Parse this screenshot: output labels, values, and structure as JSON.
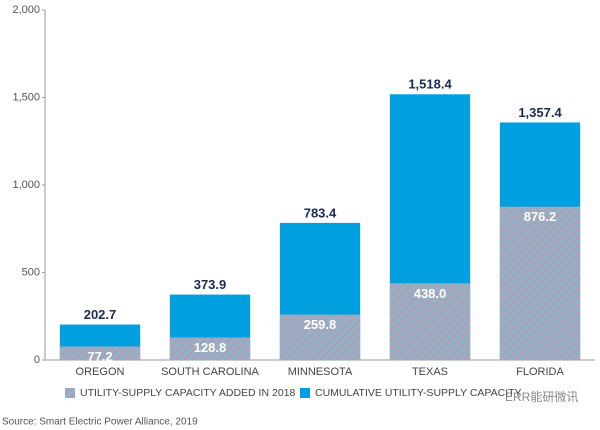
{
  "chart_data": {
    "type": "bar",
    "source": "Source: Smart Electric Power Alliance, 2019",
    "watermark": "ERR能研微讯",
    "categories": [
      "OREGON",
      "SOUTH CAROLINA",
      "MINNESOTA",
      "TEXAS",
      "FLORIDA"
    ],
    "series": [
      {
        "name": "UTILITY-SUPPLY CAPACITY ADDED IN 2018",
        "color": "#c9939e",
        "values": [
          77.2,
          128.8,
          259.8,
          438.0,
          876.2
        ],
        "value_labels": [
          "77.2",
          "128.8",
          "259.8",
          "438.0",
          "876.2"
        ]
      },
      {
        "name": "CUMULATIVE UTILITY-SUPPLY CAPACITY",
        "color": "#009fdf",
        "values": [
          202.7,
          373.9,
          783.4,
          1518.4,
          1357.4
        ],
        "value_labels": [
          "202.7",
          "373.9",
          "783.4",
          "1,518.4",
          "1,357.4"
        ]
      }
    ],
    "ylim": [
      0,
      2000
    ],
    "yticks": [
      0,
      500,
      {
        "value": 1000,
        "label": "1,000"
      },
      {
        "value": 1500,
        "label": "1,500"
      },
      {
        "value": 2000,
        "label": "2,000"
      }
    ]
  }
}
